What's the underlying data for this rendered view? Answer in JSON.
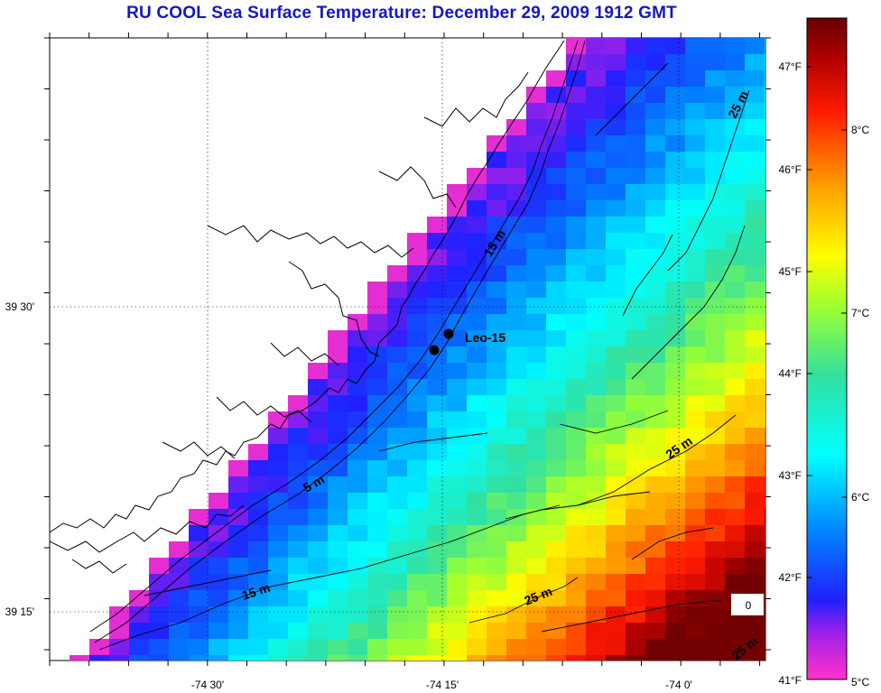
{
  "title": "RU COOL  Sea Surface Temperature:  December 29, 2009 1912 GMT",
  "map": {
    "lon_labels": [
      "-74 30'",
      "-74 15'",
      "-74 0'"
    ],
    "lat_labels": [
      "39 30'",
      "39 15'"
    ],
    "stations": [
      {
        "label": "Leo-15"
      }
    ],
    "depth_labels": [
      "25 m",
      "15 m",
      "5 m",
      "15 m",
      "25 m",
      "25 m",
      "25 m",
      "0"
    ]
  },
  "colorbar": {
    "fahrenheit_labels": [
      "47°F",
      "46°F",
      "45°F",
      "44°F",
      "43°F",
      "42°F",
      "41°F"
    ],
    "celsius_labels": [
      "8°C",
      "7°C",
      "6°C",
      "5°C"
    ]
  }
}
